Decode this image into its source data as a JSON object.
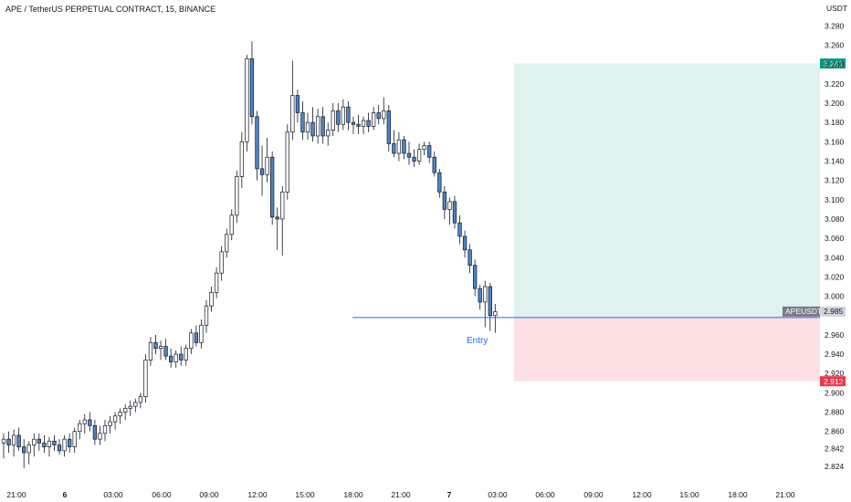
{
  "header": {
    "title": "APE / TetherUS PERPETUAL CONTRACT, 15, BINANCE"
  },
  "chart_data": {
    "type": "candlestick",
    "currency_label": "USDT",
    "y_ticks": [
      "3.280",
      "3.260",
      "3.240",
      "3.220",
      "3.200",
      "3.180",
      "3.160",
      "3.140",
      "3.120",
      "3.100",
      "3.080",
      "3.060",
      "3.040",
      "3.020",
      "3.000",
      "2.960",
      "2.940",
      "2.920",
      "2.900",
      "2.880",
      "2.860",
      "2.842",
      "2.824"
    ],
    "x_ticks": [
      {
        "label": "21:00",
        "bold": false
      },
      {
        "label": "6",
        "bold": true
      },
      {
        "label": "03:00",
        "bold": false
      },
      {
        "label": "06:00",
        "bold": false
      },
      {
        "label": "09:00",
        "bold": false
      },
      {
        "label": "12:00",
        "bold": false
      },
      {
        "label": "15:00",
        "bold": false
      },
      {
        "label": "18:00",
        "bold": false
      },
      {
        "label": "21:00",
        "bold": false
      },
      {
        "label": "7",
        "bold": true
      },
      {
        "label": "03:00",
        "bold": false
      },
      {
        "label": "06:00",
        "bold": false
      },
      {
        "label": "09:00",
        "bold": false
      },
      {
        "label": "12:00",
        "bold": false
      },
      {
        "label": "15:00",
        "bold": false
      },
      {
        "label": "18:00",
        "bold": false
      },
      {
        "label": "21:00",
        "bold": false
      }
    ],
    "position": {
      "entry_label": "Entry",
      "entry_price": 2.978,
      "target_price": 3.241,
      "target_label": "3.241",
      "stop_price": 2.912,
      "stop_label": "2.912"
    },
    "last_price": {
      "symbol": "APEUSDT.P",
      "value": "2.985"
    },
    "colors": {
      "up": "#ffffff",
      "down": "#4a86c8",
      "wick": "#131722",
      "profit_zone": "#dff2ed",
      "loss_zone": "#fde0e3",
      "target_tag": "#089981",
      "stop_tag": "#f23645",
      "entry_line": "#2962ff"
    },
    "candles": [
      {
        "o": 2.848,
        "h": 2.858,
        "l": 2.832,
        "c": 2.852
      },
      {
        "o": 2.852,
        "h": 2.86,
        "l": 2.838,
        "c": 2.846
      },
      {
        "o": 2.846,
        "h": 2.862,
        "l": 2.834,
        "c": 2.856
      },
      {
        "o": 2.856,
        "h": 2.864,
        "l": 2.84,
        "c": 2.844
      },
      {
        "o": 2.844,
        "h": 2.852,
        "l": 2.822,
        "c": 2.838
      },
      {
        "o": 2.838,
        "h": 2.85,
        "l": 2.826,
        "c": 2.846
      },
      {
        "o": 2.846,
        "h": 2.858,
        "l": 2.834,
        "c": 2.852
      },
      {
        "o": 2.852,
        "h": 2.858,
        "l": 2.84,
        "c": 2.848
      },
      {
        "o": 2.848,
        "h": 2.856,
        "l": 2.838,
        "c": 2.844
      },
      {
        "o": 2.844,
        "h": 2.854,
        "l": 2.834,
        "c": 2.85
      },
      {
        "o": 2.85,
        "h": 2.856,
        "l": 2.84,
        "c": 2.846
      },
      {
        "o": 2.846,
        "h": 2.852,
        "l": 2.836,
        "c": 2.84
      },
      {
        "o": 2.84,
        "h": 2.856,
        "l": 2.834,
        "c": 2.852
      },
      {
        "o": 2.852,
        "h": 2.858,
        "l": 2.838,
        "c": 2.844
      },
      {
        "o": 2.844,
        "h": 2.864,
        "l": 2.838,
        "c": 2.86
      },
      {
        "o": 2.86,
        "h": 2.872,
        "l": 2.852,
        "c": 2.868
      },
      {
        "o": 2.868,
        "h": 2.878,
        "l": 2.858,
        "c": 2.872
      },
      {
        "o": 2.872,
        "h": 2.88,
        "l": 2.86,
        "c": 2.866
      },
      {
        "o": 2.866,
        "h": 2.872,
        "l": 2.846,
        "c": 2.852
      },
      {
        "o": 2.852,
        "h": 2.866,
        "l": 2.846,
        "c": 2.858
      },
      {
        "o": 2.858,
        "h": 2.872,
        "l": 2.85,
        "c": 2.866
      },
      {
        "o": 2.866,
        "h": 2.876,
        "l": 2.858,
        "c": 2.87
      },
      {
        "o": 2.87,
        "h": 2.88,
        "l": 2.862,
        "c": 2.876
      },
      {
        "o": 2.876,
        "h": 2.884,
        "l": 2.868,
        "c": 2.88
      },
      {
        "o": 2.88,
        "h": 2.888,
        "l": 2.872,
        "c": 2.884
      },
      {
        "o": 2.884,
        "h": 2.892,
        "l": 2.876,
        "c": 2.886
      },
      {
        "o": 2.886,
        "h": 2.894,
        "l": 2.88,
        "c": 2.89
      },
      {
        "o": 2.89,
        "h": 2.9,
        "l": 2.884,
        "c": 2.896
      },
      {
        "o": 2.896,
        "h": 2.94,
        "l": 2.89,
        "c": 2.934
      },
      {
        "o": 2.934,
        "h": 2.958,
        "l": 2.928,
        "c": 2.952
      },
      {
        "o": 2.952,
        "h": 2.96,
        "l": 2.94,
        "c": 2.946
      },
      {
        "o": 2.946,
        "h": 2.954,
        "l": 2.934,
        "c": 2.948
      },
      {
        "o": 2.948,
        "h": 2.956,
        "l": 2.934,
        "c": 2.938
      },
      {
        "o": 2.938,
        "h": 2.946,
        "l": 2.926,
        "c": 2.932
      },
      {
        "o": 2.932,
        "h": 2.944,
        "l": 2.926,
        "c": 2.94
      },
      {
        "o": 2.94,
        "h": 2.948,
        "l": 2.928,
        "c": 2.934
      },
      {
        "o": 2.934,
        "h": 2.95,
        "l": 2.928,
        "c": 2.946
      },
      {
        "o": 2.946,
        "h": 2.966,
        "l": 2.94,
        "c": 2.962
      },
      {
        "o": 2.962,
        "h": 2.97,
        "l": 2.948,
        "c": 2.952
      },
      {
        "o": 2.952,
        "h": 2.976,
        "l": 2.946,
        "c": 2.97
      },
      {
        "o": 2.97,
        "h": 2.996,
        "l": 2.962,
        "c": 2.99
      },
      {
        "o": 2.99,
        "h": 3.01,
        "l": 2.984,
        "c": 3.004
      },
      {
        "o": 3.004,
        "h": 3.03,
        "l": 2.998,
        "c": 3.024
      },
      {
        "o": 3.024,
        "h": 3.052,
        "l": 3.016,
        "c": 3.046
      },
      {
        "o": 3.046,
        "h": 3.07,
        "l": 3.04,
        "c": 3.064
      },
      {
        "o": 3.064,
        "h": 3.09,
        "l": 3.058,
        "c": 3.084
      },
      {
        "o": 3.084,
        "h": 3.13,
        "l": 3.076,
        "c": 3.124
      },
      {
        "o": 3.124,
        "h": 3.17,
        "l": 3.112,
        "c": 3.16
      },
      {
        "o": 3.16,
        "h": 3.25,
        "l": 3.15,
        "c": 3.246
      },
      {
        "o": 3.246,
        "h": 3.264,
        "l": 3.178,
        "c": 3.186
      },
      {
        "o": 3.186,
        "h": 3.192,
        "l": 3.12,
        "c": 3.132
      },
      {
        "o": 3.132,
        "h": 3.156,
        "l": 3.104,
        "c": 3.126
      },
      {
        "o": 3.126,
        "h": 3.164,
        "l": 3.118,
        "c": 3.144
      },
      {
        "o": 3.144,
        "h": 3.15,
        "l": 3.074,
        "c": 3.082
      },
      {
        "o": 3.082,
        "h": 3.092,
        "l": 3.048,
        "c": 3.08
      },
      {
        "o": 3.08,
        "h": 3.114,
        "l": 3.042,
        "c": 3.108
      },
      {
        "o": 3.108,
        "h": 3.178,
        "l": 3.1,
        "c": 3.17
      },
      {
        "o": 3.17,
        "h": 3.244,
        "l": 3.162,
        "c": 3.208
      },
      {
        "o": 3.208,
        "h": 3.214,
        "l": 3.18,
        "c": 3.19
      },
      {
        "o": 3.19,
        "h": 3.202,
        "l": 3.162,
        "c": 3.17
      },
      {
        "o": 3.17,
        "h": 3.19,
        "l": 3.162,
        "c": 3.18
      },
      {
        "o": 3.18,
        "h": 3.196,
        "l": 3.16,
        "c": 3.166
      },
      {
        "o": 3.166,
        "h": 3.194,
        "l": 3.158,
        "c": 3.186
      },
      {
        "o": 3.186,
        "h": 3.196,
        "l": 3.158,
        "c": 3.166
      },
      {
        "o": 3.166,
        "h": 3.18,
        "l": 3.156,
        "c": 3.172
      },
      {
        "o": 3.172,
        "h": 3.2,
        "l": 3.166,
        "c": 3.192
      },
      {
        "o": 3.192,
        "h": 3.2,
        "l": 3.17,
        "c": 3.178
      },
      {
        "o": 3.178,
        "h": 3.204,
        "l": 3.172,
        "c": 3.196
      },
      {
        "o": 3.196,
        "h": 3.202,
        "l": 3.172,
        "c": 3.18
      },
      {
        "o": 3.18,
        "h": 3.186,
        "l": 3.168,
        "c": 3.178
      },
      {
        "o": 3.178,
        "h": 3.188,
        "l": 3.168,
        "c": 3.176
      },
      {
        "o": 3.176,
        "h": 3.186,
        "l": 3.168,
        "c": 3.182
      },
      {
        "o": 3.182,
        "h": 3.19,
        "l": 3.17,
        "c": 3.176
      },
      {
        "o": 3.176,
        "h": 3.196,
        "l": 3.172,
        "c": 3.19
      },
      {
        "o": 3.19,
        "h": 3.198,
        "l": 3.178,
        "c": 3.184
      },
      {
        "o": 3.184,
        "h": 3.206,
        "l": 3.178,
        "c": 3.192
      },
      {
        "o": 3.192,
        "h": 3.198,
        "l": 3.15,
        "c": 3.158
      },
      {
        "o": 3.158,
        "h": 3.172,
        "l": 3.144,
        "c": 3.148
      },
      {
        "o": 3.148,
        "h": 3.17,
        "l": 3.14,
        "c": 3.162
      },
      {
        "o": 3.162,
        "h": 3.166,
        "l": 3.142,
        "c": 3.148
      },
      {
        "o": 3.148,
        "h": 3.16,
        "l": 3.136,
        "c": 3.144
      },
      {
        "o": 3.144,
        "h": 3.152,
        "l": 3.134,
        "c": 3.14
      },
      {
        "o": 3.14,
        "h": 3.158,
        "l": 3.136,
        "c": 3.152
      },
      {
        "o": 3.152,
        "h": 3.16,
        "l": 3.146,
        "c": 3.156
      },
      {
        "o": 3.156,
        "h": 3.16,
        "l": 3.138,
        "c": 3.144
      },
      {
        "o": 3.144,
        "h": 3.15,
        "l": 3.124,
        "c": 3.128
      },
      {
        "o": 3.128,
        "h": 3.132,
        "l": 3.102,
        "c": 3.108
      },
      {
        "o": 3.108,
        "h": 3.114,
        "l": 3.08,
        "c": 3.09
      },
      {
        "o": 3.09,
        "h": 3.102,
        "l": 3.074,
        "c": 3.098
      },
      {
        "o": 3.098,
        "h": 3.104,
        "l": 3.07,
        "c": 3.076
      },
      {
        "o": 3.076,
        "h": 3.084,
        "l": 3.054,
        "c": 3.062
      },
      {
        "o": 3.062,
        "h": 3.068,
        "l": 3.04,
        "c": 3.048
      },
      {
        "o": 3.048,
        "h": 3.054,
        "l": 3.024,
        "c": 3.032
      },
      {
        "o": 3.032,
        "h": 3.038,
        "l": 3.0,
        "c": 3.008
      },
      {
        "o": 3.008,
        "h": 3.012,
        "l": 2.986,
        "c": 2.994
      },
      {
        "o": 2.994,
        "h": 3.016,
        "l": 2.968,
        "c": 3.01
      },
      {
        "o": 3.01,
        "h": 3.014,
        "l": 2.964,
        "c": 2.98
      },
      {
        "o": 2.98,
        "h": 2.992,
        "l": 2.962,
        "c": 2.984
      }
    ]
  }
}
